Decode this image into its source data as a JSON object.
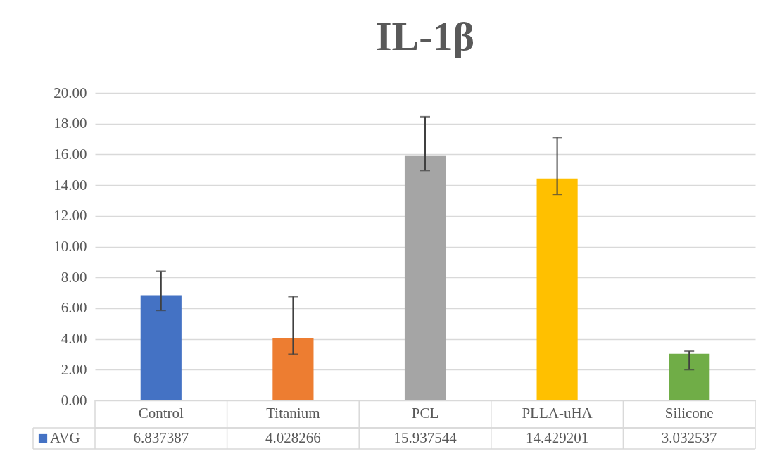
{
  "chart_data": {
    "type": "bar",
    "title": "IL-1β",
    "categories": [
      "Control",
      "Titanium",
      "PCL",
      "PLLA-uHA",
      "Silicone"
    ],
    "series": [
      {
        "name": "AVG",
        "color": "#4472c4",
        "colors": [
          "#4472c4",
          "#ed7d31",
          "#a5a5a5",
          "#ffc000",
          "#70ad47"
        ],
        "values": [
          6.837387,
          4.028266,
          15.937544,
          14.429201,
          3.032537
        ],
        "errors": [
          [
            5.85,
            8.4
          ],
          [
            3.0,
            6.75
          ],
          [
            14.95,
            18.45
          ],
          [
            13.4,
            17.1
          ],
          [
            2.0,
            3.2
          ]
        ]
      }
    ],
    "ylim": [
      0,
      20
    ],
    "yticks": [
      {
        "value": 0,
        "label": "0.00"
      },
      {
        "value": 2,
        "label": "2.00"
      },
      {
        "value": 4,
        "label": "4.00"
      },
      {
        "value": 6,
        "label": "6.00"
      },
      {
        "value": 8,
        "label": "8.00"
      },
      {
        "value": 10,
        "label": "10.00"
      },
      {
        "value": 12,
        "label": "12.00"
      },
      {
        "value": 14,
        "label": "14.00"
      },
      {
        "value": 16,
        "label": "16.00"
      },
      {
        "value": 18,
        "label": "18.00"
      },
      {
        "value": 20,
        "label": "20.00"
      }
    ],
    "grid": "y",
    "legend": "bottom left",
    "data_labels": true
  }
}
